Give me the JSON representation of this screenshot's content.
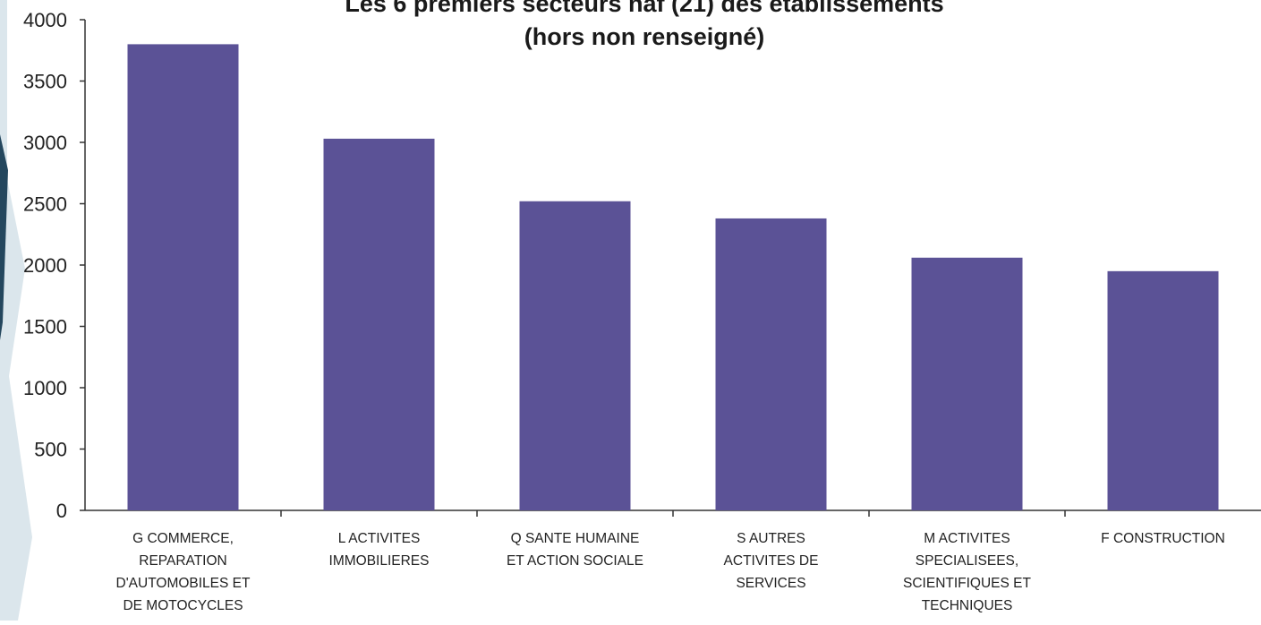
{
  "chart_data": {
    "type": "bar",
    "title": "Les 6 premiers secteurs naf (21) des établissements",
    "subtitle": "(hors non renseigné)",
    "xlabel": "",
    "ylabel": "",
    "ylim": [
      0,
      4000
    ],
    "yticks": [
      0,
      500,
      1000,
      1500,
      2000,
      2500,
      3000,
      3500,
      4000
    ],
    "grid": false,
    "legend": "none",
    "bar_color": "#5b5296",
    "categories": [
      [
        "G COMMERCE,",
        "REPARATION",
        "D'AUTOMOBILES ET",
        "DE MOTOCYCLES"
      ],
      [
        "L ACTIVITES",
        "IMMOBILIERES"
      ],
      [
        "Q SANTE HUMAINE",
        "ET ACTION SOCIALE"
      ],
      [
        "S AUTRES",
        "ACTIVITES DE",
        "SERVICES"
      ],
      [
        "M ACTIVITES",
        "SPECIALISEES,",
        "SCIENTIFIQUES ET",
        "TECHNIQUES"
      ],
      [
        "F CONSTRUCTION"
      ]
    ],
    "values": [
      3800,
      3030,
      2520,
      2380,
      2060,
      1950
    ]
  }
}
